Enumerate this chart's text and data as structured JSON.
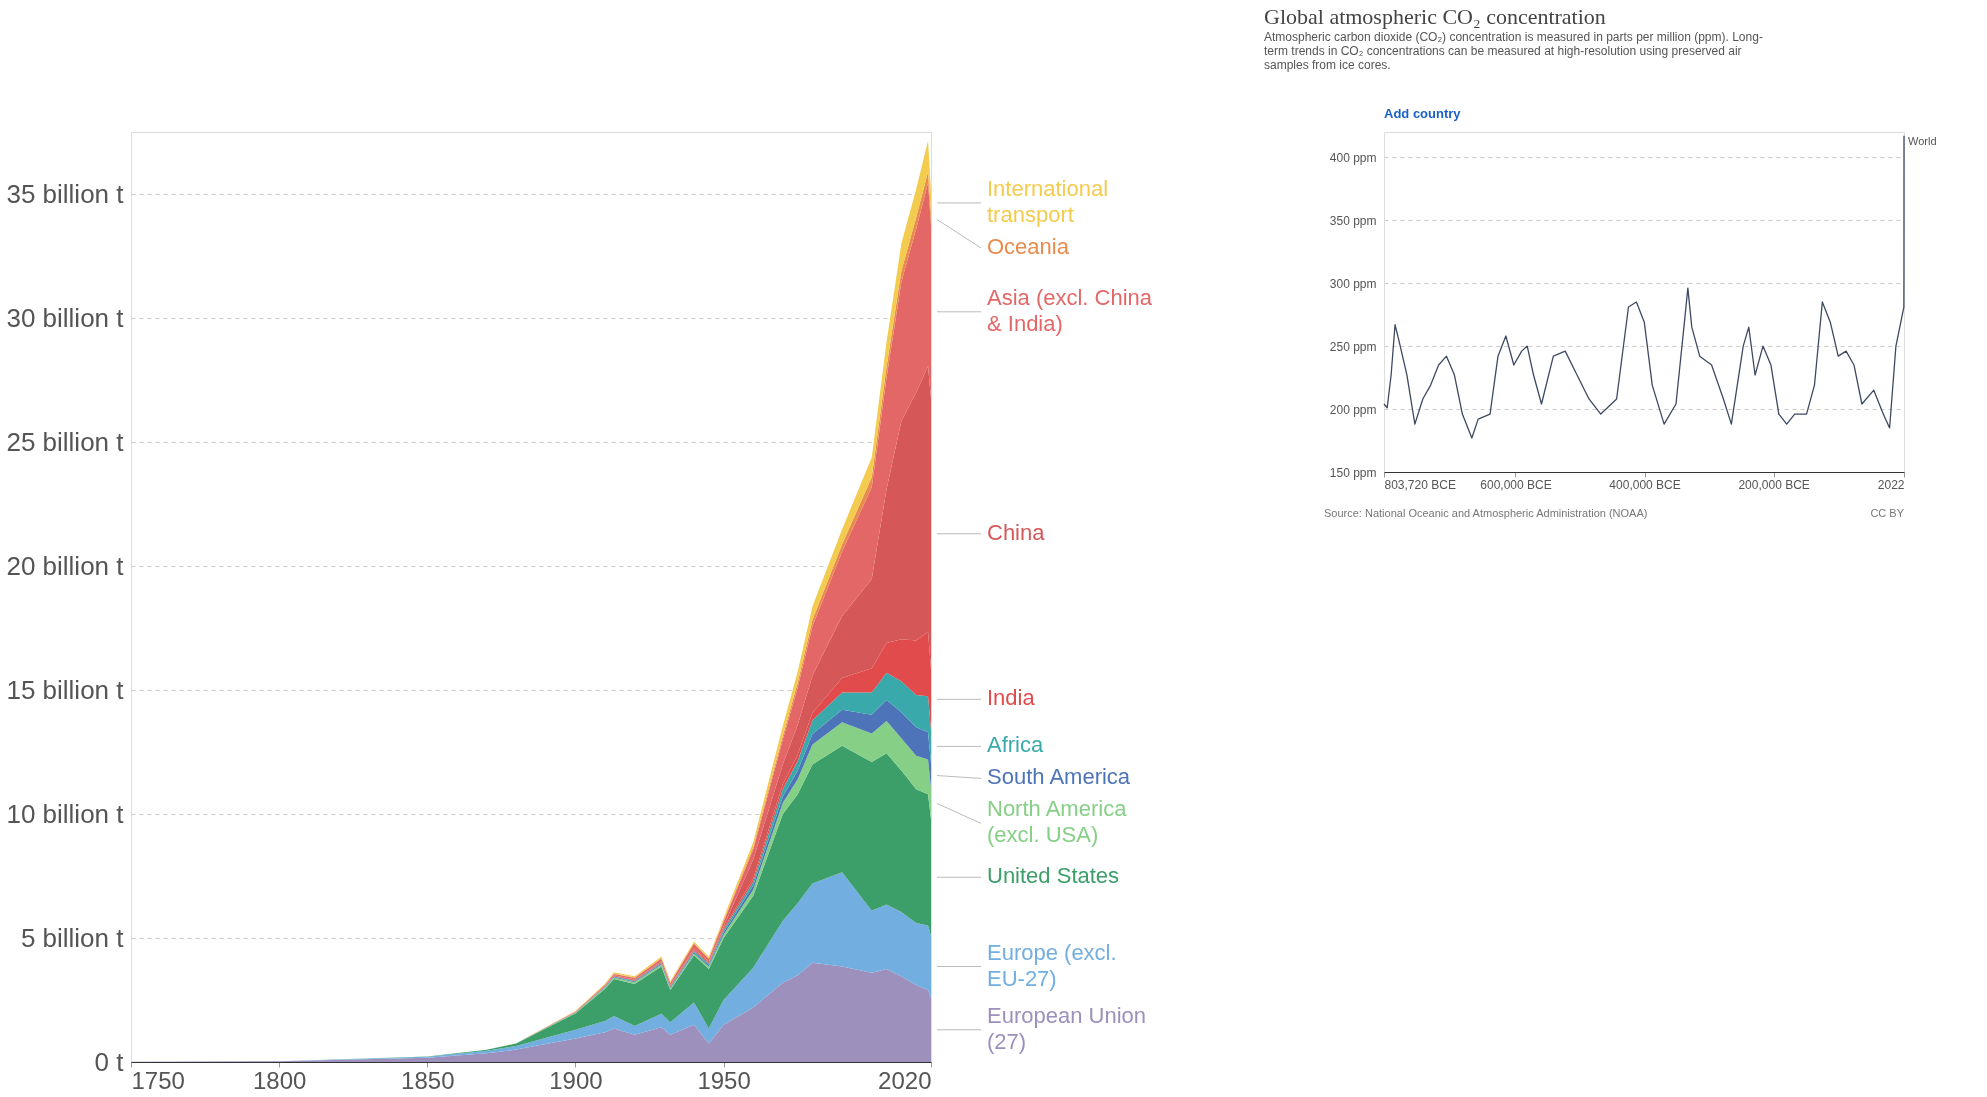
{
  "chart_data": [
    {
      "type": "area",
      "stacked": true,
      "x": [
        1750,
        1800,
        1850,
        1870,
        1880,
        1900,
        1910,
        1913,
        1920,
        1929,
        1932,
        1940,
        1945,
        1950,
        1960,
        1970,
        1975,
        1980,
        1990,
        2000,
        2005,
        2010,
        2015,
        2019,
        2020
      ],
      "series": [
        {
          "name": "European Union (27)",
          "color": "#9d90bd",
          "values": [
            0.01,
            0.03,
            0.17,
            0.35,
            0.5,
            0.95,
            1.2,
            1.35,
            1.1,
            1.4,
            1.1,
            1.5,
            0.75,
            1.5,
            2.2,
            3.2,
            3.5,
            4.0,
            3.85,
            3.6,
            3.75,
            3.45,
            3.1,
            2.9,
            2.6
          ]
        },
        {
          "name": "Europe (excl. EU-27)",
          "color": "#72aee0",
          "values": [
            0,
            0,
            0.04,
            0.1,
            0.15,
            0.35,
            0.45,
            0.5,
            0.35,
            0.55,
            0.5,
            0.9,
            0.6,
            1.0,
            1.6,
            2.5,
            2.9,
            3.2,
            3.8,
            2.5,
            2.6,
            2.6,
            2.5,
            2.6,
            2.5
          ]
        },
        {
          "name": "United States",
          "color": "#3c9e68",
          "values": [
            0,
            0,
            0.01,
            0.04,
            0.1,
            0.66,
            1.3,
            1.5,
            1.7,
            1.9,
            1.3,
            1.9,
            2.4,
            2.5,
            2.9,
            4.3,
            4.4,
            4.8,
            5.1,
            6.0,
            6.1,
            5.7,
            5.4,
            5.3,
            4.7
          ]
        },
        {
          "name": "North America (excl. USA)",
          "color": "#86cf86",
          "values": [
            0,
            0,
            0,
            0,
            0.01,
            0.02,
            0.05,
            0.06,
            0.07,
            0.08,
            0.06,
            0.08,
            0.1,
            0.13,
            0.25,
            0.45,
            0.6,
            0.8,
            0.95,
            1.15,
            1.3,
            1.3,
            1.35,
            1.4,
            1.25
          ]
        },
        {
          "name": "South America",
          "color": "#4d73b9",
          "values": [
            0,
            0,
            0,
            0,
            0,
            0.01,
            0.02,
            0.03,
            0.03,
            0.04,
            0.04,
            0.05,
            0.06,
            0.09,
            0.17,
            0.26,
            0.34,
            0.43,
            0.5,
            0.75,
            0.85,
            1.05,
            1.15,
            1.1,
            1.0
          ]
        },
        {
          "name": "Africa",
          "color": "#3aa9ab",
          "values": [
            0,
            0,
            0,
            0,
            0,
            0.01,
            0.02,
            0.02,
            0.03,
            0.03,
            0.03,
            0.05,
            0.06,
            0.1,
            0.15,
            0.3,
            0.4,
            0.55,
            0.7,
            0.9,
            1.1,
            1.25,
            1.3,
            1.45,
            1.35
          ]
        },
        {
          "name": "India",
          "color": "#e14b4b",
          "values": [
            0,
            0,
            0,
            0,
            0,
            0.01,
            0.02,
            0.03,
            0.03,
            0.03,
            0.03,
            0.04,
            0.04,
            0.06,
            0.12,
            0.2,
            0.25,
            0.3,
            0.58,
            0.98,
            1.2,
            1.7,
            2.2,
            2.6,
            2.45
          ]
        },
        {
          "name": "China",
          "color": "#d65757",
          "values": [
            0,
            0,
            0,
            0,
            0,
            0,
            0.01,
            0.01,
            0.02,
            0.03,
            0.03,
            0.05,
            0.04,
            0.08,
            0.78,
            0.8,
            1.2,
            1.5,
            2.5,
            3.6,
            6.2,
            8.8,
            10.0,
            10.7,
            10.9
          ]
        },
        {
          "name": "Asia (excl. China & India)",
          "color": "#e46767",
          "values": [
            0,
            0,
            0,
            0,
            0,
            0.02,
            0.04,
            0.05,
            0.06,
            0.1,
            0.1,
            0.2,
            0.1,
            0.2,
            0.4,
            1.0,
            1.5,
            2.0,
            2.6,
            3.7,
            4.5,
            5.6,
            6.6,
            7.4,
            7.0
          ]
        },
        {
          "name": "Oceania",
          "color": "#e98b4c",
          "values": [
            0,
            0,
            0,
            0,
            0,
            0.01,
            0.02,
            0.02,
            0.02,
            0.03,
            0.02,
            0.03,
            0.03,
            0.05,
            0.1,
            0.15,
            0.2,
            0.25,
            0.3,
            0.4,
            0.43,
            0.45,
            0.45,
            0.45,
            0.44
          ]
        },
        {
          "name": "International transport",
          "color": "#f3cb4e",
          "values": [
            0,
            0,
            0,
            0,
            0,
            0.02,
            0.04,
            0.05,
            0.05,
            0.06,
            0.05,
            0.06,
            0.06,
            0.1,
            0.2,
            0.4,
            0.45,
            0.55,
            0.6,
            0.8,
            1.0,
            1.1,
            1.15,
            1.25,
            0.9
          ]
        }
      ],
      "xlim": [
        1750,
        2020
      ],
      "xticks": [
        1750,
        1800,
        1850,
        1900,
        1950,
        2020
      ],
      "ylim": [
        0,
        37.5
      ],
      "yticks": [
        {
          "value": 0,
          "label": "0 t"
        },
        {
          "value": 5,
          "label": "5 billion t"
        },
        {
          "value": 10,
          "label": "10 billion t"
        },
        {
          "value": 15,
          "label": "15 billion t"
        },
        {
          "value": 20,
          "label": "20 billion t"
        },
        {
          "value": 25,
          "label": "25 billion t"
        },
        {
          "value": 30,
          "label": "30 billion t"
        },
        {
          "value": 35,
          "label": "35 billion t"
        }
      ],
      "grid": "y"
    },
    {
      "type": "line",
      "title": "Global atmospheric CO₂ concentration",
      "subtitle": "Atmospheric carbon dioxide (CO₂) concentration is measured in parts per million (ppm). Long-term trends in CO₂ concentrations can be measured at high-resolution using preserved air samples from ice cores.",
      "x": [
        -803720,
        -798800,
        -792700,
        -786600,
        -780400,
        -768200,
        -755900,
        -743600,
        -731400,
        -719100,
        -706900,
        -694600,
        -682300,
        -667600,
        -657800,
        -639400,
        -627100,
        -614900,
        -602600,
        -590400,
        -581800,
        -572000,
        -559700,
        -541300,
        -522900,
        -504600,
        -486100,
        -467800,
        -443300,
        -424900,
        -412600,
        -400400,
        -388100,
        -369700,
        -351300,
        -339000,
        -332900,
        -326800,
        -314500,
        -296100,
        -277800,
        -265500,
        -247100,
        -238500,
        -228700,
        -216500,
        -204200,
        -191900,
        -179700,
        -167400,
        -149000,
        -136700,
        -124500,
        -112200,
        -99900,
        -87700,
        -75500,
        -63200,
        -44800,
        -30100,
        -20300,
        -10500,
        1800,
        1950,
        2022
      ],
      "series": [
        {
          "name": "World",
          "color": "#3d4a62",
          "values": [
            204,
            201,
            227,
            267,
            254,
            227,
            188,
            208,
            219,
            235,
            242,
            227,
            196,
            177,
            192,
            196,
            242,
            258,
            235,
            246,
            250,
            227,
            204,
            242,
            246,
            227,
            208,
            196,
            208,
            281,
            285,
            269,
            219,
            188,
            204,
            265,
            296,
            265,
            242,
            235,
            208,
            188,
            250,
            265,
            227,
            250,
            235,
            196,
            188,
            196,
            196,
            219,
            285,
            269,
            242,
            246,
            235,
            204,
            215,
            196,
            185,
            250,
            281,
            311,
            417
          ]
        }
      ],
      "xlim": [
        -803720,
        2022
      ],
      "xticks": [
        {
          "value": -803720,
          "label": "803,720 BCE"
        },
        {
          "value": -600000,
          "label": "600,000 BCE"
        },
        {
          "value": -400000,
          "label": "400,000 BCE"
        },
        {
          "value": -200000,
          "label": "200,000 BCE"
        },
        2022
      ],
      "ylim": [
        150,
        420
      ],
      "yticks": [
        {
          "value": 150,
          "label": "150 ppm"
        },
        {
          "value": 200,
          "label": "200 ppm"
        },
        {
          "value": 250,
          "label": "250 ppm"
        },
        {
          "value": 300,
          "label": "300 ppm"
        },
        {
          "value": 350,
          "label": "350 ppm"
        },
        {
          "value": 400,
          "label": "400 ppm"
        }
      ],
      "grid": "y",
      "annotations": [
        "Add country",
        "Source: National Oceanic and Atmospheric Administration (NOAA)",
        "CC BY"
      ]
    }
  ]
}
